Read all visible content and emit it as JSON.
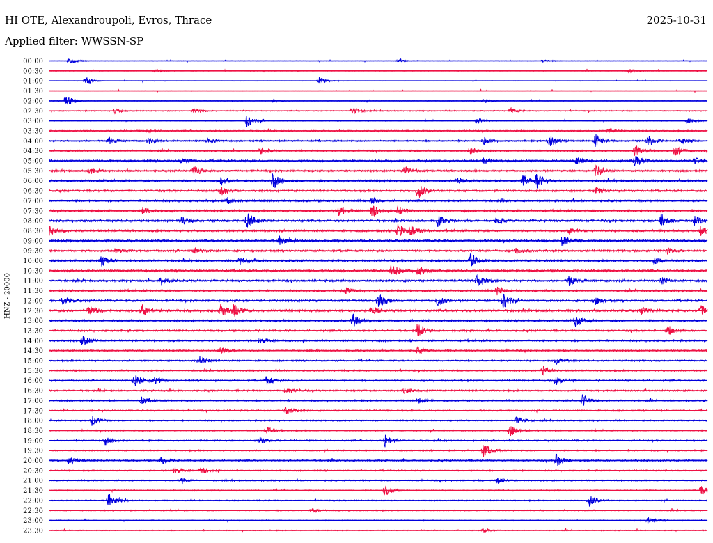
{
  "header": {
    "station": "HI OTE, Alexandroupoli, Evros, Thrace",
    "date": "2025-10-31",
    "filter": "Applied filter: WWSSN-SP"
  },
  "chart_data": {
    "type": "helicorder",
    "ylabel": "HNZ - 20000",
    "trace_colors": [
      "#0000dd",
      "#ee1144"
    ],
    "row_labels": [
      "00:00",
      "00:30",
      "01:00",
      "01:30",
      "02:00",
      "02:30",
      "03:00",
      "03:30",
      "04:00",
      "04:30",
      "05:00",
      "05:30",
      "06:00",
      "06:30",
      "07:00",
      "07:30",
      "08:00",
      "08:30",
      "09:00",
      "09:30",
      "10:00",
      "10:30",
      "11:00",
      "11:30",
      "12:00",
      "12:30",
      "13:00",
      "13:30",
      "14:00",
      "14:30",
      "15:00",
      "15:30",
      "16:00",
      "16:30",
      "17:00",
      "17:30",
      "18:00",
      "18:30",
      "19:00",
      "19:30",
      "20:00",
      "20:30",
      "21:00",
      "21:30",
      "22:00",
      "22:30",
      "23:00",
      "23:30"
    ],
    "row_noise": [
      0.4,
      0.5,
      0.4,
      0.3,
      0.5,
      0.8,
      0.6,
      1.0,
      1.2,
      1.3,
      1.5,
      1.5,
      1.6,
      1.5,
      1.5,
      1.6,
      1.7,
      1.6,
      1.6,
      1.6,
      1.6,
      1.6,
      1.6,
      1.5,
      1.6,
      1.7,
      1.5,
      1.4,
      1.3,
      1.2,
      1.2,
      1.2,
      1.3,
      1.3,
      1.2,
      1.1,
      1.0,
      1.0,
      1.1,
      1.0,
      1.2,
      1.0,
      1.0,
      1.0,
      0.9,
      0.8,
      0.8,
      0.7
    ],
    "events": [
      [
        {
          "t": 0.03,
          "a": 5
        },
        {
          "t": 0.53,
          "a": 2
        },
        {
          "t": 0.75,
          "a": 2
        }
      ],
      [
        {
          "t": 0.16,
          "a": 2
        },
        {
          "t": 0.88,
          "a": 3
        }
      ],
      [
        {
          "t": 0.055,
          "a": 6
        },
        {
          "t": 0.41,
          "a": 5
        }
      ],
      [],
      [
        {
          "t": 0.025,
          "a": 10
        },
        {
          "t": 0.34,
          "a": 2
        },
        {
          "t": 0.66,
          "a": 3
        }
      ],
      [
        {
          "t": 0.1,
          "a": 4
        },
        {
          "t": 0.22,
          "a": 4
        },
        {
          "t": 0.46,
          "a": 6
        },
        {
          "t": 0.7,
          "a": 4
        }
      ],
      [
        {
          "t": 0.3,
          "a": 9
        },
        {
          "t": 0.65,
          "a": 5
        },
        {
          "t": 0.97,
          "a": 4
        }
      ],
      [
        {
          "t": 0.15,
          "a": 2
        },
        {
          "t": 0.85,
          "a": 3
        }
      ],
      [
        {
          "t": 0.09,
          "a": 5
        },
        {
          "t": 0.15,
          "a": 5
        },
        {
          "t": 0.24,
          "a": 4
        },
        {
          "t": 0.66,
          "a": 5
        },
        {
          "t": 0.76,
          "a": 11
        },
        {
          "t": 0.83,
          "a": 10
        },
        {
          "t": 0.91,
          "a": 8
        },
        {
          "t": 0.96,
          "a": 5
        }
      ],
      [
        {
          "t": 0.32,
          "a": 5
        },
        {
          "t": 0.64,
          "a": 5
        },
        {
          "t": 0.89,
          "a": 9
        },
        {
          "t": 0.95,
          "a": 7
        }
      ],
      [
        {
          "t": 0.2,
          "a": 4
        },
        {
          "t": 0.66,
          "a": 4
        },
        {
          "t": 0.8,
          "a": 6
        },
        {
          "t": 0.89,
          "a": 12
        },
        {
          "t": 0.98,
          "a": 5
        }
      ],
      [
        {
          "t": 0.06,
          "a": 5
        },
        {
          "t": 0.22,
          "a": 7
        },
        {
          "t": 0.54,
          "a": 6
        },
        {
          "t": 0.83,
          "a": 8
        }
      ],
      [
        {
          "t": 0.26,
          "a": 7
        },
        {
          "t": 0.34,
          "a": 12
        },
        {
          "t": 0.62,
          "a": 5
        },
        {
          "t": 0.72,
          "a": 8
        },
        {
          "t": 0.74,
          "a": 12
        }
      ],
      [
        {
          "t": 0.26,
          "a": 7
        },
        {
          "t": 0.56,
          "a": 12
        },
        {
          "t": 0.83,
          "a": 5
        }
      ],
      [
        {
          "t": 0.27,
          "a": 5
        },
        {
          "t": 0.49,
          "a": 4
        }
      ],
      [
        {
          "t": 0.14,
          "a": 5
        },
        {
          "t": 0.44,
          "a": 7
        },
        {
          "t": 0.49,
          "a": 10
        },
        {
          "t": 0.53,
          "a": 6
        }
      ],
      [
        {
          "t": 0.2,
          "a": 6
        },
        {
          "t": 0.3,
          "a": 13
        },
        {
          "t": 0.59,
          "a": 8
        },
        {
          "t": 0.68,
          "a": 5
        },
        {
          "t": 0.93,
          "a": 10
        },
        {
          "t": 0.98,
          "a": 7
        }
      ],
      [
        {
          "t": 0.0,
          "a": 7
        },
        {
          "t": 0.53,
          "a": 10
        },
        {
          "t": 0.55,
          "a": 8
        },
        {
          "t": 0.79,
          "a": 5
        },
        {
          "t": 0.99,
          "a": 7
        }
      ],
      [
        {
          "t": 0.35,
          "a": 7
        },
        {
          "t": 0.78,
          "a": 9
        }
      ],
      [
        {
          "t": 0.1,
          "a": 4
        },
        {
          "t": 0.22,
          "a": 4
        },
        {
          "t": 0.71,
          "a": 5
        },
        {
          "t": 0.94,
          "a": 5
        }
      ],
      [
        {
          "t": 0.08,
          "a": 10
        },
        {
          "t": 0.29,
          "a": 5
        },
        {
          "t": 0.64,
          "a": 11
        },
        {
          "t": 0.92,
          "a": 5
        }
      ],
      [
        {
          "t": 0.52,
          "a": 11
        },
        {
          "t": 0.56,
          "a": 7
        }
      ],
      [
        {
          "t": 0.17,
          "a": 7
        },
        {
          "t": 0.65,
          "a": 9
        },
        {
          "t": 0.79,
          "a": 8
        },
        {
          "t": 0.93,
          "a": 5
        }
      ],
      [
        {
          "t": 0.45,
          "a": 4
        },
        {
          "t": 0.68,
          "a": 6
        }
      ],
      [
        {
          "t": 0.02,
          "a": 6
        },
        {
          "t": 0.5,
          "a": 10
        },
        {
          "t": 0.59,
          "a": 8
        },
        {
          "t": 0.69,
          "a": 11
        },
        {
          "t": 0.83,
          "a": 5
        }
      ],
      [
        {
          "t": 0.06,
          "a": 8
        },
        {
          "t": 0.14,
          "a": 9
        },
        {
          "t": 0.26,
          "a": 10
        },
        {
          "t": 0.28,
          "a": 8
        },
        {
          "t": 0.49,
          "a": 7
        },
        {
          "t": 0.9,
          "a": 5
        },
        {
          "t": 0.99,
          "a": 8
        }
      ],
      [
        {
          "t": 0.46,
          "a": 12
        },
        {
          "t": 0.8,
          "a": 10
        }
      ],
      [
        {
          "t": 0.56,
          "a": 9
        },
        {
          "t": 0.94,
          "a": 6
        }
      ],
      [
        {
          "t": 0.05,
          "a": 8
        },
        {
          "t": 0.32,
          "a": 4
        }
      ],
      [
        {
          "t": 0.26,
          "a": 6
        },
        {
          "t": 0.56,
          "a": 5
        }
      ],
      [
        {
          "t": 0.23,
          "a": 6
        },
        {
          "t": 0.77,
          "a": 5
        }
      ],
      [
        {
          "t": 0.75,
          "a": 6
        }
      ],
      [
        {
          "t": 0.13,
          "a": 9
        },
        {
          "t": 0.16,
          "a": 6
        },
        {
          "t": 0.33,
          "a": 7
        },
        {
          "t": 0.77,
          "a": 6
        }
      ],
      [
        {
          "t": 0.36,
          "a": 6
        },
        {
          "t": 0.54,
          "a": 4
        }
      ],
      [
        {
          "t": 0.14,
          "a": 5
        },
        {
          "t": 0.56,
          "a": 4
        },
        {
          "t": 0.81,
          "a": 9
        }
      ],
      [
        {
          "t": 0.36,
          "a": 6
        }
      ],
      [
        {
          "t": 0.065,
          "a": 8
        },
        {
          "t": 0.71,
          "a": 7
        }
      ],
      [
        {
          "t": 0.33,
          "a": 5
        },
        {
          "t": 0.7,
          "a": 9
        }
      ],
      [
        {
          "t": 0.085,
          "a": 6
        },
        {
          "t": 0.32,
          "a": 5
        },
        {
          "t": 0.51,
          "a": 9
        }
      ],
      [
        {
          "t": 0.66,
          "a": 10
        }
      ],
      [
        {
          "t": 0.03,
          "a": 6
        },
        {
          "t": 0.17,
          "a": 5
        },
        {
          "t": 0.77,
          "a": 10
        }
      ],
      [
        {
          "t": 0.19,
          "a": 5
        },
        {
          "t": 0.23,
          "a": 5
        }
      ],
      [
        {
          "t": 0.2,
          "a": 4
        },
        {
          "t": 0.68,
          "a": 5
        }
      ],
      [
        {
          "t": 0.51,
          "a": 8
        },
        {
          "t": 0.99,
          "a": 9
        }
      ],
      [
        {
          "t": 0.09,
          "a": 11
        },
        {
          "t": 0.82,
          "a": 9
        }
      ],
      [
        {
          "t": 0.4,
          "a": 3
        }
      ],
      [
        {
          "t": 0.91,
          "a": 5
        }
      ],
      [
        {
          "t": 0.66,
          "a": 3
        }
      ]
    ]
  }
}
